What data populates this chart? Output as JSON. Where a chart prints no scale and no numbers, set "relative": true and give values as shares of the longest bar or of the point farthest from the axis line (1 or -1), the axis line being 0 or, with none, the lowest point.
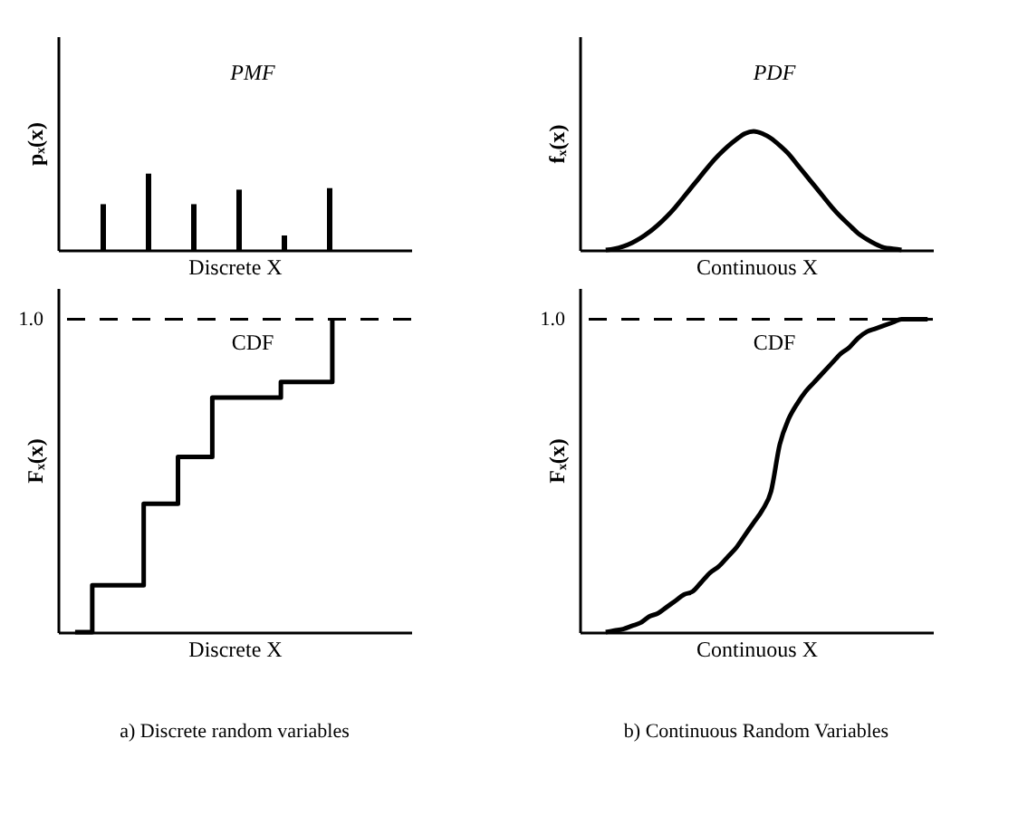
{
  "chart_data": [
    {
      "type": "bar",
      "relative": true,
      "title": "PMF",
      "xlabel": "Discrete X",
      "ylabel": "pₓ(x)",
      "tick_labels": false,
      "categories": [
        null,
        null,
        null,
        null,
        null,
        null
      ],
      "series": [
        {
          "color": "#000000",
          "values": [
            0.6,
            1,
            0.6,
            0.79,
            0.19,
            0.81
          ]
        }
      ]
    },
    {
      "type": "line",
      "relative": true,
      "title": "PDF",
      "xlabel": "Continuous X",
      "ylabel": "fₓ(x)",
      "tick_labels": false,
      "line_style": "solid",
      "categories": [
        null,
        null,
        null,
        null,
        null,
        null,
        null,
        null,
        null,
        null,
        null,
        null,
        null,
        null,
        null,
        null,
        null,
        null,
        null,
        null,
        null,
        null,
        null,
        null,
        null,
        null,
        null,
        null,
        null,
        null,
        null,
        null,
        null,
        null,
        null,
        null,
        null,
        null,
        null,
        null,
        null
      ],
      "series": [
        {
          "color": "#000000",
          "values": [
            null,
            null,
            null,
            0,
            0.01,
            0.03,
            0.06,
            0.1,
            0.15,
            0.21,
            0.28,
            0.36,
            0.45,
            0.54,
            0.63,
            0.72,
            0.8,
            0.87,
            0.93,
            0.98,
            1,
            0.98,
            0.94,
            0.88,
            0.81,
            0.72,
            0.63,
            0.54,
            0.45,
            0.36,
            0.28,
            0.21,
            0.14,
            0.09,
            0.05,
            0.02,
            0.01,
            0,
            null,
            null,
            null
          ]
        }
      ]
    },
    {
      "type": "step",
      "relative": true,
      "title": "CDF",
      "xlabel": "Discrete X",
      "ylabel": "Fₓ(x)",
      "tick_labels": false,
      "line_style": "solid",
      "annotations": [
        "a) Discrete random variables"
      ],
      "ref_lines": [
        {
          "axis": "y",
          "value": 1,
          "label": "1.0",
          "line_style": "dashed",
          "color": "#000000"
        }
      ],
      "categories": [
        null,
        null,
        null,
        null,
        null,
        null,
        null,
        null,
        null,
        null,
        null,
        null,
        null,
        null,
        null,
        null,
        null,
        null,
        null,
        null,
        null
      ],
      "series": [
        {
          "color": "#000000",
          "values": [
            null,
            0,
            0.15,
            null,
            null,
            0.41,
            null,
            0.56,
            null,
            0.75,
            null,
            null,
            null,
            0.8,
            null,
            null,
            1,
            null,
            null,
            null,
            null
          ]
        }
      ]
    },
    {
      "type": "line",
      "relative": true,
      "title": "CDF",
      "xlabel": "Continuous X",
      "ylabel": "Fₓ(x)",
      "tick_labels": false,
      "line_style": "solid",
      "annotations": [
        "b) Continuous Random Variables"
      ],
      "ref_lines": [
        {
          "axis": "y",
          "value": 1,
          "label": "1.0",
          "line_style": "dashed",
          "color": "#000000"
        }
      ],
      "categories": [
        null,
        null,
        null,
        null,
        null,
        null,
        null,
        null,
        null,
        null,
        null,
        null,
        null,
        null,
        null,
        null,
        null,
        null,
        null,
        null,
        null,
        null,
        null,
        null,
        null,
        null,
        null,
        null,
        null,
        null,
        null,
        null,
        null,
        null,
        null,
        null,
        null,
        null,
        null,
        null,
        null
      ],
      "series": [
        {
          "color": "#000000",
          "values": [
            null,
            null,
            null,
            0,
            0.005,
            0.01,
            0.02,
            0.03,
            0.05,
            0.06,
            0.08,
            0.1,
            0.12,
            0.13,
            0.16,
            0.19,
            0.21,
            0.24,
            0.27,
            0.31,
            0.35,
            0.39,
            0.45,
            0.6,
            0.68,
            0.73,
            0.77,
            0.8,
            0.83,
            0.86,
            0.89,
            0.91,
            0.94,
            0.96,
            0.97,
            0.98,
            0.99,
            1,
            1,
            1,
            1
          ]
        }
      ]
    }
  ]
}
